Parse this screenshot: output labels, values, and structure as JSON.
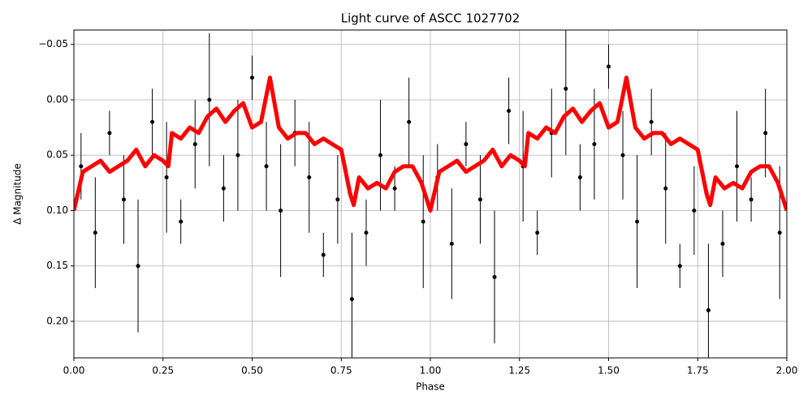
{
  "chart_data": {
    "type": "scatter",
    "title": "Light curve of ASCC 1027702",
    "x_label": "Phase",
    "y_label": "Δ Magnitude",
    "xlim": [
      0,
      2
    ],
    "ylim": [
      -0.063,
      0.233
    ],
    "y_inverted": true,
    "grid": true,
    "xticks": [
      {
        "value": 0,
        "label": "0.00"
      },
      0.25,
      {
        "value": 0.5,
        "label": "0.50"
      },
      0.75,
      {
        "value": 1,
        "label": "1.00"
      },
      1.25,
      {
        "value": 1.5,
        "label": "1.50"
      },
      1.75,
      {
        "value": 2,
        "label": "2.00"
      }
    ],
    "yticks": [
      {
        "value": -0.05,
        "label": "−0.05"
      },
      {
        "value": 0,
        "label": "0.00"
      },
      0.05,
      {
        "value": 0.1,
        "label": "0.10"
      },
      0.15,
      {
        "value": 0.2,
        "label": "0.20"
      }
    ],
    "points": {
      "color": "#000000",
      "x": [
        0.02,
        0.06,
        0.1,
        0.14,
        0.18,
        0.22,
        0.26,
        0.3,
        0.34,
        0.38,
        0.42,
        0.46,
        0.5,
        0.54,
        0.58,
        0.62,
        0.66,
        0.7,
        0.74,
        0.78,
        0.82,
        0.86,
        0.9,
        0.94,
        0.98,
        1.02,
        1.06,
        1.1,
        1.14,
        1.18,
        1.22,
        1.26,
        1.3,
        1.34,
        1.38,
        1.42,
        1.46,
        1.5,
        1.54,
        1.58,
        1.62,
        1.66,
        1.7,
        1.74,
        1.78,
        1.82,
        1.86,
        1.9,
        1.94,
        1.98
      ],
      "values": [
        0.06,
        0.12,
        0.03,
        0.09,
        0.15,
        0.02,
        0.07,
        0.11,
        0.04,
        0.0,
        0.08,
        0.05,
        -0.02,
        0.06,
        0.1,
        0.03,
        0.07,
        0.14,
        0.09,
        0.18,
        0.12,
        0.05,
        0.08,
        0.02,
        0.11,
        0.07,
        0.13,
        0.04,
        0.09,
        0.16,
        0.01,
        0.06,
        0.12,
        0.03,
        -0.01,
        0.07,
        0.04,
        -0.03,
        0.05,
        0.11,
        0.02,
        0.08,
        0.15,
        0.1,
        0.19,
        0.13,
        0.06,
        0.09,
        0.03,
        0.12
      ],
      "errors": [
        0.03,
        0.05,
        0.02,
        0.04,
        0.06,
        0.03,
        0.05,
        0.02,
        0.04,
        0.06,
        0.03,
        0.05,
        0.02,
        0.04,
        0.06,
        0.03,
        0.05,
        0.02,
        0.04,
        0.06,
        0.03,
        0.05,
        0.02,
        0.04,
        0.06,
        0.03,
        0.05,
        0.02,
        0.04,
        0.06,
        0.03,
        0.05,
        0.02,
        0.04,
        0.06,
        0.03,
        0.05,
        0.02,
        0.04,
        0.06,
        0.03,
        0.05,
        0.02,
        0.04,
        0.06,
        0.03,
        0.05,
        0.02,
        0.04,
        0.06
      ]
    },
    "model_line": {
      "color": "#ff0000",
      "x": [
        0,
        0.025,
        0.05,
        0.075,
        0.1,
        0.125,
        0.15,
        0.175,
        0.2,
        0.225,
        0.25,
        0.265,
        0.275,
        0.3,
        0.325,
        0.35,
        0.375,
        0.4,
        0.425,
        0.45,
        0.475,
        0.5,
        0.525,
        0.55,
        0.575,
        0.6,
        0.625,
        0.65,
        0.675,
        0.7,
        0.725,
        0.75,
        0.775,
        0.785,
        0.8,
        0.825,
        0.85,
        0.875,
        0.9,
        0.925,
        0.95,
        0.975,
        1,
        1.025,
        1.05,
        1.075,
        1.1,
        1.125,
        1.15,
        1.175,
        1.2,
        1.225,
        1.25,
        1.265,
        1.275,
        1.3,
        1.325,
        1.35,
        1.375,
        1.4,
        1.425,
        1.45,
        1.475,
        1.5,
        1.525,
        1.55,
        1.575,
        1.6,
        1.625,
        1.65,
        1.675,
        1.7,
        1.725,
        1.75,
        1.775,
        1.785,
        1.8,
        1.825,
        1.85,
        1.875,
        1.9,
        1.925,
        1.95,
        1.975,
        2
      ],
      "values": [
        0.1,
        0.065,
        0.06,
        0.055,
        0.065,
        0.06,
        0.055,
        0.045,
        0.06,
        0.05,
        0.055,
        0.06,
        0.03,
        0.035,
        0.025,
        0.03,
        0.015,
        0.008,
        0.02,
        0.01,
        0.003,
        0.025,
        0.02,
        -0.02,
        0.025,
        0.035,
        0.03,
        0.03,
        0.04,
        0.035,
        0.04,
        0.045,
        0.085,
        0.095,
        0.07,
        0.08,
        0.075,
        0.08,
        0.065,
        0.06,
        0.06,
        0.075,
        0.1,
        0.065,
        0.06,
        0.055,
        0.065,
        0.06,
        0.055,
        0.045,
        0.06,
        0.05,
        0.055,
        0.06,
        0.03,
        0.035,
        0.025,
        0.03,
        0.015,
        0.008,
        0.02,
        0.01,
        0.003,
        0.025,
        0.02,
        -0.02,
        0.025,
        0.035,
        0.03,
        0.03,
        0.04,
        0.035,
        0.04,
        0.045,
        0.085,
        0.095,
        0.07,
        0.08,
        0.075,
        0.08,
        0.065,
        0.06,
        0.06,
        0.075,
        0.1
      ]
    }
  }
}
